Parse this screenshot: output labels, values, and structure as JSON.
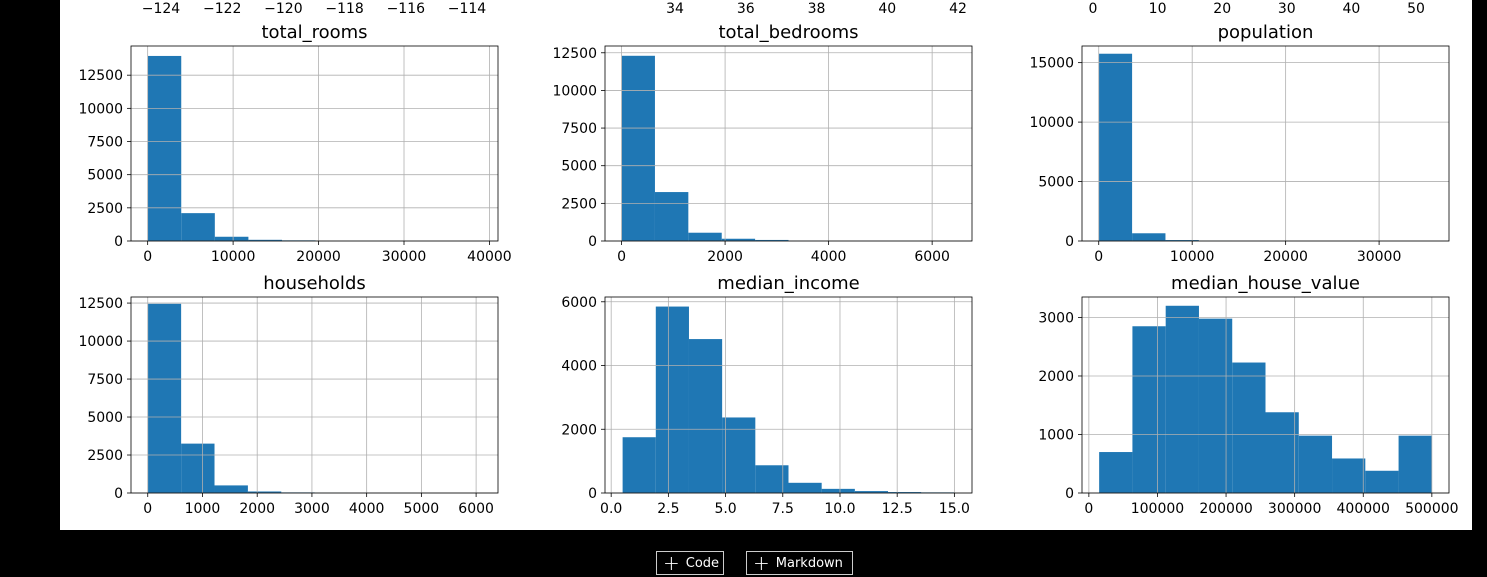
{
  "toolbar": {
    "add_code_label": "Code",
    "add_markdown_label": "Markdown",
    "plus_icon": "+"
  },
  "colors": {
    "bar": "#1f77b4",
    "grid": "#b0b0b0",
    "background": "#ffffff"
  },
  "top_axes": [
    {
      "ticks": [
        "−124",
        "−122",
        "−120",
        "−118",
        "−116",
        "−114"
      ]
    },
    {
      "ticks": [
        "34",
        "36",
        "38",
        "40",
        "42"
      ]
    },
    {
      "ticks": [
        "0",
        "10",
        "20",
        "30",
        "40",
        "50"
      ]
    }
  ],
  "chart_data": [
    {
      "type": "bar",
      "title": "total_rooms",
      "grid": true,
      "xlim": [
        -1950,
        41000
      ],
      "ylim": [
        0,
        14700
      ],
      "xticks": [
        0,
        10000,
        20000,
        30000,
        40000
      ],
      "xtick_labels": [
        "0",
        "10000",
        "20000",
        "30000",
        "40000"
      ],
      "yticks": [
        0,
        2500,
        5000,
        7500,
        10000,
        12500
      ],
      "ytick_labels": [
        "0",
        "2500",
        "5000",
        "7500",
        "10000",
        "12500"
      ],
      "bin_edges": [
        0,
        3930,
        7860,
        11790,
        15720,
        19650,
        23580,
        27510,
        31440,
        35370,
        39300
      ],
      "values": [
        13950,
        2100,
        320,
        90,
        50,
        10,
        5,
        3,
        2,
        1
      ]
    },
    {
      "type": "bar",
      "title": "total_bedrooms",
      "grid": true,
      "xlim": [
        -320,
        6770
      ],
      "ylim": [
        0,
        12950
      ],
      "xticks": [
        0,
        2000,
        4000,
        6000
      ],
      "xtick_labels": [
        "0",
        "2000",
        "4000",
        "6000"
      ],
      "yticks": [
        0,
        2500,
        5000,
        7500,
        10000,
        12500
      ],
      "ytick_labels": [
        "0",
        "2500",
        "5000",
        "7500",
        "10000",
        "12500"
      ],
      "bin_edges": [
        0,
        645,
        1290,
        1935,
        2580,
        3225,
        3870,
        4515,
        5160,
        5805,
        6450
      ],
      "values": [
        12300,
        3250,
        550,
        150,
        70,
        20,
        10,
        5,
        3,
        2
      ]
    },
    {
      "type": "bar",
      "title": "population",
      "grid": true,
      "xlim": [
        -1790,
        37480
      ],
      "ylim": [
        0,
        16400
      ],
      "xticks": [
        0,
        10000,
        20000,
        30000
      ],
      "xtick_labels": [
        "0",
        "10000",
        "20000",
        "30000"
      ],
      "yticks": [
        0,
        5000,
        10000,
        15000
      ],
      "ytick_labels": [
        "0",
        "5000",
        "10000",
        "15000"
      ],
      "bin_edges": [
        3,
        3570,
        7140,
        10710,
        14280,
        17850,
        21420,
        24990,
        28560,
        32130,
        35700
      ],
      "values": [
        15750,
        650,
        80,
        20,
        8,
        3,
        2,
        1,
        1,
        1
      ]
    },
    {
      "type": "bar",
      "title": "households",
      "grid": true,
      "xlim": [
        -306,
        6400
      ],
      "ylim": [
        0,
        12900
      ],
      "xticks": [
        0,
        1000,
        2000,
        3000,
        4000,
        5000,
        6000
      ],
      "xtick_labels": [
        "0",
        "1000",
        "2000",
        "3000",
        "4000",
        "5000",
        "6000"
      ],
      "yticks": [
        0,
        2500,
        5000,
        7500,
        10000,
        12500
      ],
      "ytick_labels": [
        "0",
        "2500",
        "5000",
        "7500",
        "10000",
        "12500"
      ],
      "bin_edges": [
        1,
        610,
        1220,
        1830,
        2440,
        3050,
        3660,
        4270,
        4880,
        5490,
        6100
      ],
      "values": [
        12450,
        3250,
        500,
        100,
        40,
        15,
        8,
        4,
        2,
        1
      ]
    },
    {
      "type": "bar",
      "title": "median_income",
      "grid": true,
      "xlim": [
        -0.27,
        15.77
      ],
      "ylim": [
        0,
        6150
      ],
      "xticks": [
        0,
        2.5,
        5,
        7.5,
        10,
        12.5,
        15
      ],
      "xtick_labels": [
        "0.0",
        "2.5",
        "5.0",
        "7.5",
        "10.0",
        "12.5",
        "15.0"
      ],
      "yticks": [
        0,
        2000,
        4000,
        6000
      ],
      "ytick_labels": [
        "0",
        "2000",
        "4000",
        "6000"
      ],
      "bin_edges": [
        0.5,
        1.95,
        3.4,
        4.85,
        6.3,
        7.75,
        9.2,
        10.65,
        12.1,
        13.55,
        15.0
      ],
      "values": [
        1750,
        5850,
        4830,
        2370,
        870,
        320,
        130,
        60,
        30,
        20
      ]
    },
    {
      "type": "bar",
      "title": "median_house_value",
      "grid": true,
      "xlim": [
        -10000,
        525000
      ],
      "ylim": [
        0,
        3350
      ],
      "xticks": [
        0,
        100000,
        200000,
        300000,
        400000,
        500000
      ],
      "xtick_labels": [
        "0",
        "100000",
        "200000",
        "300000",
        "400000",
        "500000"
      ],
      "yticks": [
        0,
        1000,
        2000,
        3000
      ],
      "ytick_labels": [
        "0",
        "1000",
        "2000",
        "3000"
      ],
      "bin_edges": [
        15000,
        63500,
        112000,
        160500,
        209000,
        257500,
        306000,
        354500,
        403000,
        451500,
        500000
      ],
      "values": [
        700,
        2850,
        3200,
        2980,
        2230,
        1380,
        980,
        590,
        380,
        980
      ]
    }
  ]
}
